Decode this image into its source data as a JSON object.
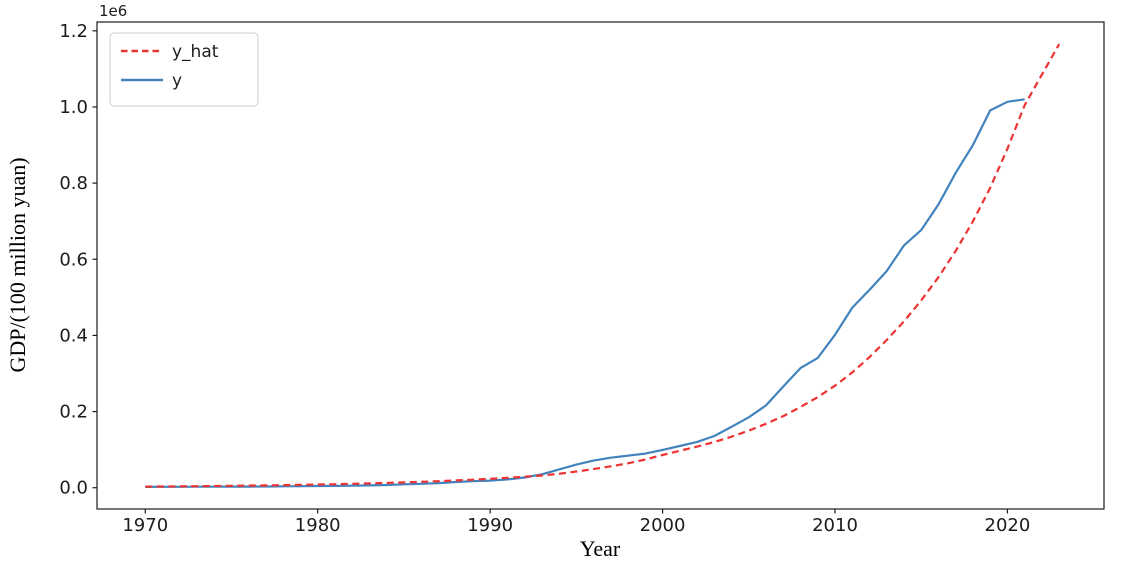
{
  "figure": {
    "background": "#ffffff"
  },
  "chart_data": {
    "type": "line",
    "title": "",
    "xlabel": "Year",
    "ylabel": "GDP/(100 million yuan)",
    "scale_offset_text": "1e6",
    "grid": false,
    "xlim": [
      1967.2,
      2025.6
    ],
    "ylim": [
      -55884,
      1223137
    ],
    "xticks": [
      1970,
      1980,
      1990,
      2000,
      2010,
      2020
    ],
    "xtick_labels": [
      "1970",
      "1980",
      "1990",
      "2000",
      "2010",
      "2020"
    ],
    "yticks": [
      0,
      200000,
      400000,
      600000,
      800000,
      1000000,
      1200000
    ],
    "ytick_labels": [
      "0.0",
      "0.2",
      "0.4",
      "0.6",
      "0.8",
      "1.0",
      "1.2"
    ],
    "legend": {
      "position": "upper-left",
      "entries": [
        {
          "label": "y_hat",
          "color": "#ee3333",
          "style": "dashed"
        },
        {
          "label": "y",
          "color": "#4283bd",
          "style": "solid"
        }
      ]
    },
    "series": [
      {
        "name": "y",
        "color": "#4283bd",
        "style": "solid",
        "x": [
          1970,
          1971,
          1972,
          1973,
          1974,
          1975,
          1976,
          1977,
          1978,
          1979,
          1980,
          1981,
          1982,
          1983,
          1984,
          1985,
          1986,
          1987,
          1988,
          1989,
          1990,
          1991,
          1992,
          1993,
          1994,
          1995,
          1996,
          1997,
          1998,
          1999,
          2000,
          2001,
          2002,
          2003,
          2004,
          2005,
          2006,
          2007,
          2008,
          2009,
          2010,
          2011,
          2012,
          2013,
          2014,
          2015,
          2016,
          2017,
          2018,
          2019,
          2020,
          2021
        ],
        "values": [
          2253,
          2426,
          2518,
          2721,
          2790,
          2997,
          2944,
          3202,
          3645,
          4063,
          4546,
          4889,
          5330,
          5986,
          7243,
          9041,
          10274,
          12051,
          15037,
          17001,
          18668,
          21781,
          26923,
          35334,
          48198,
          60794,
          71177,
          78973,
          84402,
          89677,
          99215,
          109655,
          120333,
          135823,
          159878,
          184937,
          216314,
          265810,
          314045,
          340903,
          401513,
          473104,
          519470,
          568845,
          636463,
          676708,
          744127,
          827122,
          900309,
          990865,
          1013567,
          1020000
        ]
      },
      {
        "name": "y_hat",
        "color": "#ee3333",
        "style": "dashed",
        "x": [
          1970,
          1971,
          1972,
          1973,
          1974,
          1975,
          1976,
          1977,
          1978,
          1979,
          1980,
          1981,
          1982,
          1983,
          1984,
          1985,
          1986,
          1987,
          1988,
          1989,
          1990,
          1991,
          1992,
          1993,
          1994,
          1995,
          1996,
          1997,
          1998,
          1999,
          2000,
          2001,
          2002,
          2003,
          2004,
          2005,
          2006,
          2007,
          2008,
          2009,
          2010,
          2011,
          2012,
          2013,
          2014,
          2015,
          2016,
          2017,
          2018,
          2019,
          2020,
          2021,
          2022,
          2023
        ],
        "values": [
          3000,
          3320,
          3680,
          4080,
          4520,
          5010,
          5550,
          6150,
          6820,
          7560,
          8380,
          9290,
          10300,
          11420,
          12660,
          14030,
          15550,
          17240,
          19110,
          21180,
          23480,
          26030,
          28850,
          31980,
          36500,
          42500,
          49000,
          56200,
          64200,
          74000,
          86000,
          97000,
          108000,
          120000,
          134000,
          150000,
          168000,
          188000,
          212000,
          238000,
          268000,
          303000,
          343000,
          388000,
          437000,
          492000,
          553000,
          622000,
          700000,
          788000,
          890000,
          1005000,
          1085000,
          1165000
        ]
      }
    ]
  }
}
